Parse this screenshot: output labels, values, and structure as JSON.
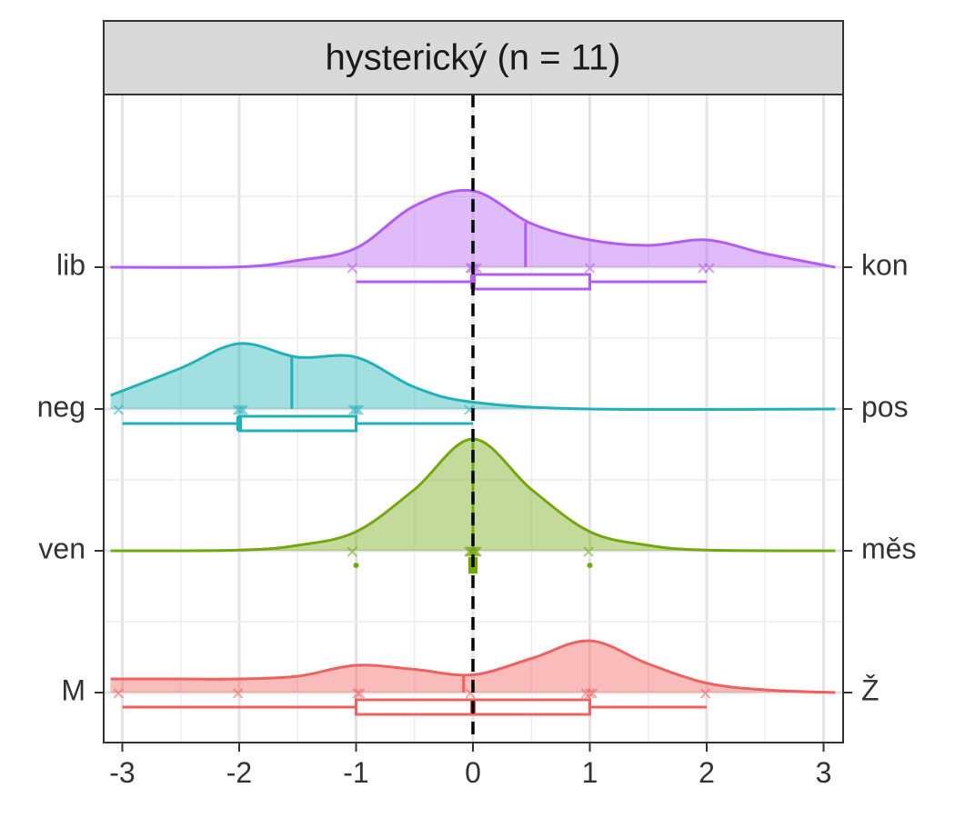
{
  "chart_data": {
    "type": "ridgeline",
    "facet_title": "hysterický (n = 11)",
    "x_ticks": [
      -3,
      -2,
      -1,
      0,
      1,
      2,
      3
    ],
    "xlim": [
      -3.1,
      3.1
    ],
    "reference_line_x": 0,
    "grid": true,
    "rows": [
      {
        "left_label": "lib",
        "right_label": "kon",
        "color": "#b35cf2",
        "mean": 0.45,
        "box": {
          "min": -1,
          "q1": 0,
          "median": 0,
          "q3": 1,
          "max": 2
        },
        "points": [
          -1,
          0,
          0,
          0,
          0,
          1,
          2,
          2
        ],
        "outliers": [],
        "density": [
          [
            -3.1,
            0
          ],
          [
            -2.0,
            0.003
          ],
          [
            -1.5,
            0.05
          ],
          [
            -1.0,
            0.14
          ],
          [
            -0.5,
            0.45
          ],
          [
            0,
            0.56
          ],
          [
            0.5,
            0.32
          ],
          [
            1.0,
            0.2
          ],
          [
            1.5,
            0.16
          ],
          [
            2.0,
            0.2
          ],
          [
            2.5,
            0.1
          ],
          [
            3.1,
            0
          ]
        ]
      },
      {
        "left_label": "neg",
        "right_label": "pos",
        "color": "#21b2b8",
        "mean": -1.55,
        "box": {
          "min": -3,
          "q1": -2,
          "median": -2,
          "q3": -1,
          "max": 0
        },
        "points": [
          -3,
          -2,
          -2,
          -2,
          -1,
          -1,
          -1,
          0
        ],
        "outliers": [],
        "density": [
          [
            -3.1,
            0.1
          ],
          [
            -2.5,
            0.3
          ],
          [
            -2.0,
            0.48
          ],
          [
            -1.5,
            0.38
          ],
          [
            -1.0,
            0.38
          ],
          [
            -0.5,
            0.16
          ],
          [
            0,
            0.05
          ],
          [
            1.0,
            0
          ],
          [
            3.1,
            0
          ]
        ]
      },
      {
        "left_label": "ven",
        "right_label": "měs",
        "color": "#72a80e",
        "mean": 0,
        "box": {
          "min": 0,
          "q1": 0,
          "median": 0,
          "q3": 0,
          "max": 0
        },
        "points": [
          -1,
          0,
          0,
          0,
          0,
          0,
          0,
          0,
          1
        ],
        "outliers": [
          -1,
          1
        ],
        "density": [
          [
            -3.1,
            0
          ],
          [
            -2.0,
            0.005
          ],
          [
            -1.5,
            0.04
          ],
          [
            -1.0,
            0.14
          ],
          [
            -0.5,
            0.45
          ],
          [
            0,
            0.82
          ],
          [
            0.5,
            0.45
          ],
          [
            1.0,
            0.14
          ],
          [
            1.5,
            0.04
          ],
          [
            2.0,
            0.005
          ],
          [
            3.1,
            0
          ]
        ]
      },
      {
        "left_label": "M",
        "right_label": "Ž",
        "color": "#f0605e",
        "mean": -0.08,
        "box": {
          "min": -3,
          "q1": -1,
          "median": 0,
          "q3": 1,
          "max": 2
        },
        "points": [
          -3,
          -2,
          -1,
          -1,
          0,
          1,
          1,
          1,
          2
        ],
        "outliers": [],
        "density": [
          [
            -3.1,
            0.1
          ],
          [
            -2.5,
            0.1
          ],
          [
            -2.0,
            0.1
          ],
          [
            -1.5,
            0.12
          ],
          [
            -1.0,
            0.2
          ],
          [
            -0.5,
            0.17
          ],
          [
            0,
            0.13
          ],
          [
            0.5,
            0.25
          ],
          [
            1.0,
            0.38
          ],
          [
            1.5,
            0.21
          ],
          [
            2.0,
            0.07
          ],
          [
            2.5,
            0.02
          ],
          [
            3.1,
            0
          ]
        ]
      }
    ]
  }
}
